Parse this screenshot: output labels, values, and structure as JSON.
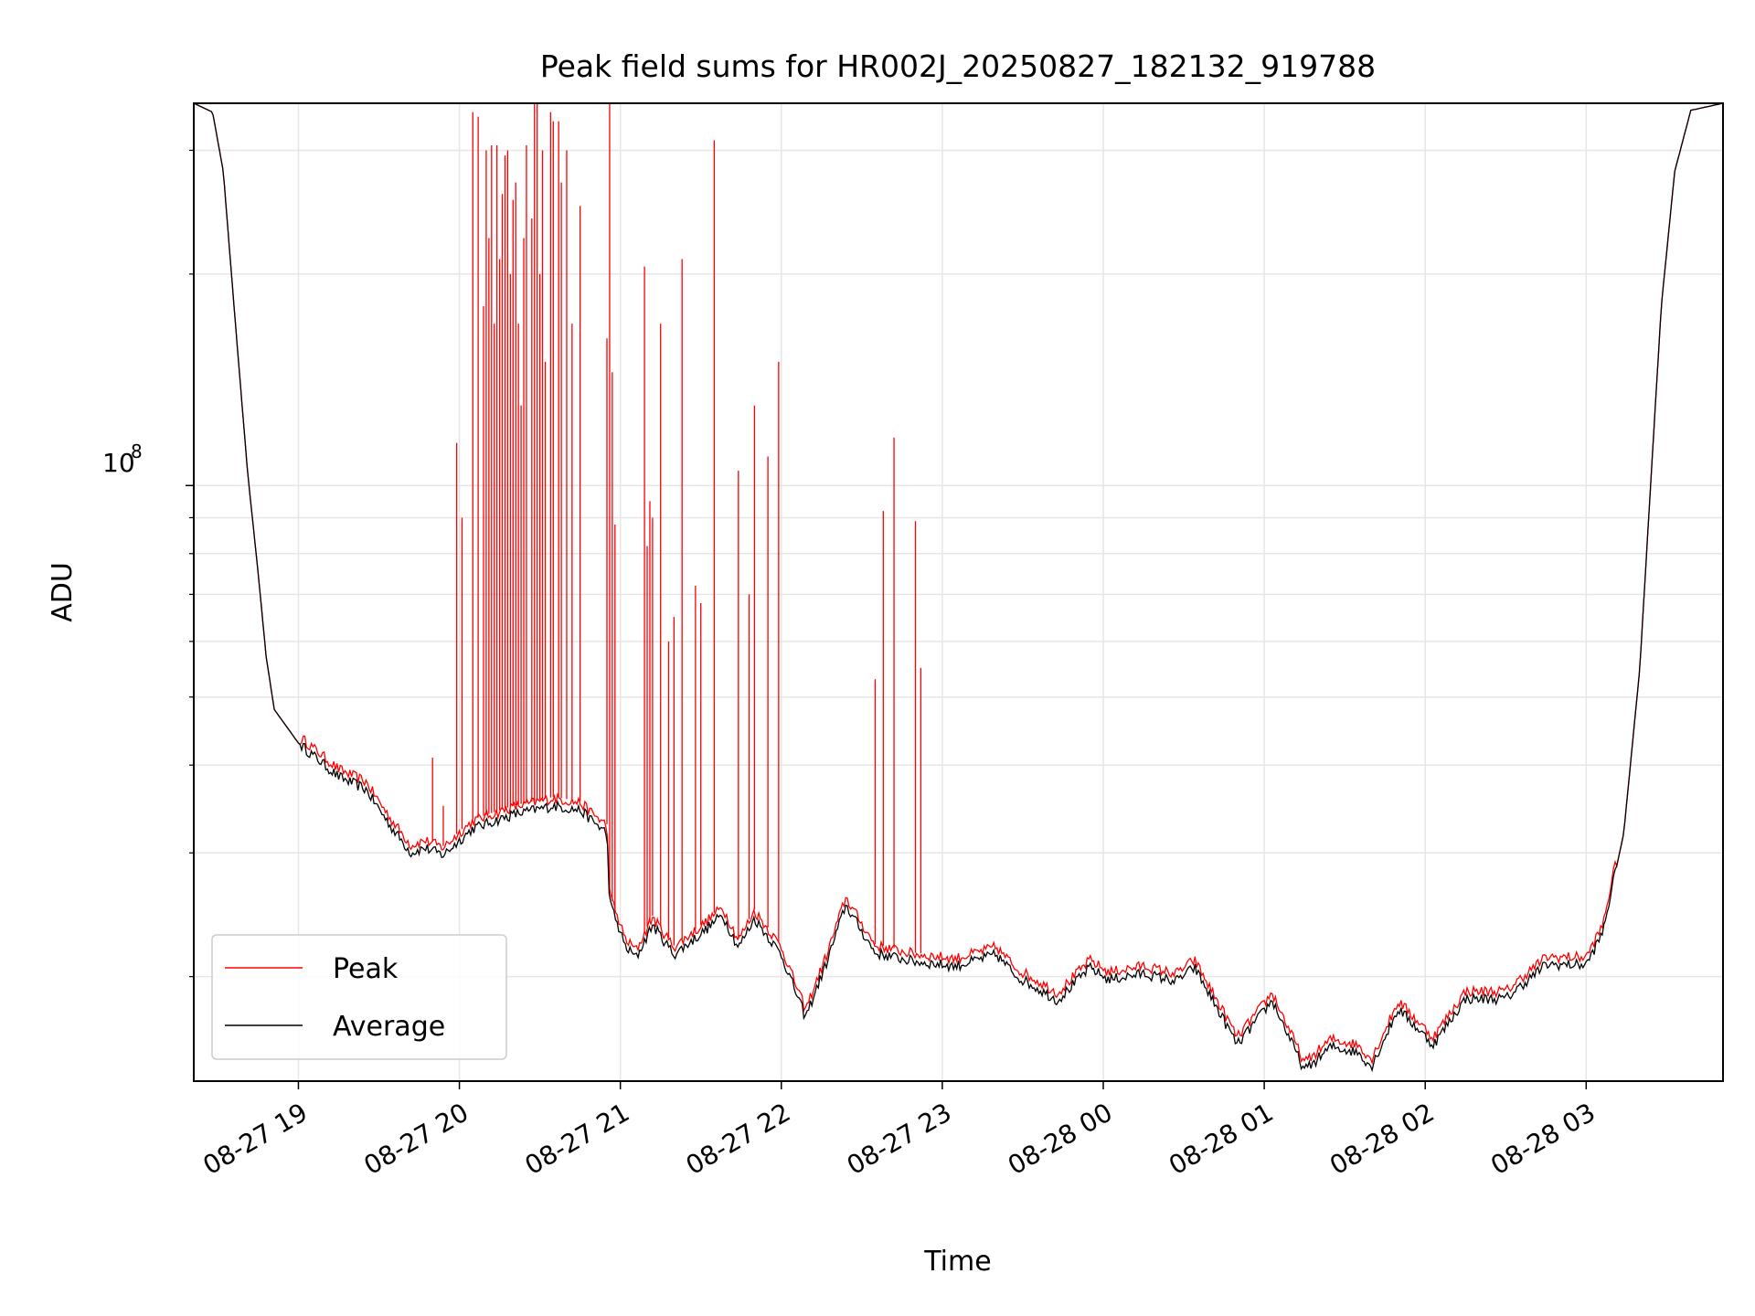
{
  "chart_data": {
    "type": "line",
    "title": "Peak field sums for HR002J_20250827_182132_919788",
    "xlabel": "Time",
    "ylabel": "ADU",
    "y_scale": "log",
    "ytick_label": {
      "base": "10",
      "exp": "8",
      "value": 100000000
    },
    "grid": true,
    "legend_position": "lower-left",
    "x_range": [
      "2025-08-27 18:21",
      "2025-08-28 03:51"
    ],
    "y_range": [
      14200000,
      350000000
    ],
    "xticks": [
      {
        "time": "2025-08-27 19:00",
        "label": "08-27 19"
      },
      {
        "time": "2025-08-27 20:00",
        "label": "08-27 20"
      },
      {
        "time": "2025-08-27 21:00",
        "label": "08-27 21"
      },
      {
        "time": "2025-08-27 22:00",
        "label": "08-27 22"
      },
      {
        "time": "2025-08-27 23:00",
        "label": "08-27 23"
      },
      {
        "time": "2025-08-28 00:00",
        "label": "08-28 00"
      },
      {
        "time": "2025-08-28 01:00",
        "label": "08-28 01"
      },
      {
        "time": "2025-08-28 02:00",
        "label": "08-28 02"
      },
      {
        "time": "2025-08-28 03:00",
        "label": "08-28 03"
      }
    ],
    "series": [
      {
        "name": "Average",
        "color": "#000000",
        "points": [
          [
            "2025-08-27 18:21",
            350000000
          ],
          [
            "2025-08-27 18:28",
            340000000
          ],
          [
            "2025-08-27 18:32",
            280000000
          ],
          [
            "2025-08-27 18:36",
            180000000
          ],
          [
            "2025-08-27 18:41",
            105000000
          ],
          [
            "2025-08-27 18:45",
            75000000
          ],
          [
            "2025-08-27 18:48",
            57000000
          ],
          [
            "2025-08-27 18:51",
            48000000
          ],
          [
            "2025-08-27 19:00",
            43000000
          ],
          [
            "2025-08-27 19:15",
            38500000
          ],
          [
            "2025-08-27 19:25",
            37000000
          ],
          [
            "2025-08-27 19:35",
            32500000
          ],
          [
            "2025-08-27 19:42",
            30000000
          ],
          [
            "2025-08-27 19:47",
            30500000
          ],
          [
            "2025-08-27 19:54",
            29800000
          ],
          [
            "2025-08-27 20:05",
            32500000
          ],
          [
            "2025-08-27 20:20",
            34000000
          ],
          [
            "2025-08-27 20:35",
            35000000
          ],
          [
            "2025-08-27 20:45",
            34500000
          ],
          [
            "2025-08-27 20:55",
            32000000
          ],
          [
            "2025-08-27 20:56",
            25500000
          ],
          [
            "2025-08-27 21:02",
            22000000
          ],
          [
            "2025-08-27 21:06",
            21300000
          ],
          [
            "2025-08-27 21:12",
            23700000
          ],
          [
            "2025-08-27 21:20",
            21500000
          ],
          [
            "2025-08-27 21:30",
            23000000
          ],
          [
            "2025-08-27 21:38",
            24500000
          ],
          [
            "2025-08-27 21:44",
            22000000
          ],
          [
            "2025-08-27 21:50",
            24200000
          ],
          [
            "2025-08-27 22:00",
            21500000
          ],
          [
            "2025-08-27 22:09",
            17500000
          ],
          [
            "2025-08-27 22:17",
            21000000
          ],
          [
            "2025-08-27 22:24",
            25300000
          ],
          [
            "2025-08-27 22:35",
            21600000
          ],
          [
            "2025-08-27 22:50",
            21000000
          ],
          [
            "2025-08-27 23:05",
            20700000
          ],
          [
            "2025-08-27 23:20",
            21500000
          ],
          [
            "2025-08-27 23:28",
            20000000
          ],
          [
            "2025-08-27 23:43",
            18500000
          ],
          [
            "2025-08-27 23:55",
            20600000
          ],
          [
            "2025-08-28 00:02",
            19800000
          ],
          [
            "2025-08-28 00:15",
            20200000
          ],
          [
            "2025-08-28 00:27",
            19700000
          ],
          [
            "2025-08-28 00:34",
            20600000
          ],
          [
            "2025-08-28 00:50",
            16000000
          ],
          [
            "2025-08-28 01:03",
            18500000
          ],
          [
            "2025-08-28 01:15",
            14700000
          ],
          [
            "2025-08-28 01:25",
            15900000
          ],
          [
            "2025-08-28 01:35",
            15600000
          ],
          [
            "2025-08-28 01:40",
            14900000
          ],
          [
            "2025-08-28 01:50",
            18000000
          ],
          [
            "2025-08-28 02:03",
            16000000
          ],
          [
            "2025-08-28 02:15",
            18600000
          ],
          [
            "2025-08-28 02:30",
            18600000
          ],
          [
            "2025-08-28 02:45",
            20800000
          ],
          [
            "2025-08-28 03:00",
            20800000
          ],
          [
            "2025-08-28 03:06",
            23000000
          ],
          [
            "2025-08-28 03:14",
            32000000
          ],
          [
            "2025-08-28 03:20",
            55000000
          ],
          [
            "2025-08-28 03:24",
            100000000
          ],
          [
            "2025-08-28 03:28",
            180000000
          ],
          [
            "2025-08-28 03:33",
            280000000
          ],
          [
            "2025-08-28 03:39",
            342000000
          ],
          [
            "2025-08-28 03:51",
            350000000
          ]
        ]
      },
      {
        "name": "Peak",
        "color": "#ff0000",
        "spikes": [
          [
            "2025-08-27 19:50",
            41000000
          ],
          [
            "2025-08-27 19:54",
            35000000
          ],
          [
            "2025-08-27 19:59",
            115000000
          ],
          [
            "2025-08-27 20:01",
            90000000
          ],
          [
            "2025-08-27 20:05",
            340000000
          ],
          [
            "2025-08-27 20:07",
            335000000
          ],
          [
            "2025-08-27 20:09",
            180000000
          ],
          [
            "2025-08-27 20:10",
            300000000
          ],
          [
            "2025-08-27 20:11",
            225000000
          ],
          [
            "2025-08-27 20:12",
            305000000
          ],
          [
            "2025-08-27 20:13",
            170000000
          ],
          [
            "2025-08-27 20:14",
            305000000
          ],
          [
            "2025-08-27 20:15",
            210000000
          ],
          [
            "2025-08-27 20:16",
            260000000
          ],
          [
            "2025-08-27 20:17",
            295000000
          ],
          [
            "2025-08-27 20:18",
            300000000
          ],
          [
            "2025-08-27 20:19",
            200000000
          ],
          [
            "2025-08-27 20:20",
            255000000
          ],
          [
            "2025-08-27 20:21",
            270000000
          ],
          [
            "2025-08-27 20:22",
            170000000
          ],
          [
            "2025-08-27 20:23",
            130000000
          ],
          [
            "2025-08-27 20:24",
            225000000
          ],
          [
            "2025-08-27 20:25",
            305000000
          ],
          [
            "2025-08-27 20:27",
            240000000
          ],
          [
            "2025-08-27 20:28",
            350000000
          ],
          [
            "2025-08-27 20:29",
            350000000
          ],
          [
            "2025-08-27 20:30",
            200000000
          ],
          [
            "2025-08-27 20:31",
            300000000
          ],
          [
            "2025-08-27 20:32",
            150000000
          ],
          [
            "2025-08-27 20:34",
            340000000
          ],
          [
            "2025-08-27 20:35",
            330000000
          ],
          [
            "2025-08-27 20:37",
            330000000
          ],
          [
            "2025-08-27 20:38",
            270000000
          ],
          [
            "2025-08-27 20:40",
            300000000
          ],
          [
            "2025-08-27 20:42",
            170000000
          ],
          [
            "2025-08-27 20:45",
            250000000
          ],
          [
            "2025-08-27 20:55",
            162000000
          ],
          [
            "2025-08-27 20:56",
            350000000
          ],
          [
            "2025-08-27 20:57",
            145000000
          ],
          [
            "2025-08-27 20:58",
            88000000
          ],
          [
            "2025-08-27 21:09",
            205000000
          ],
          [
            "2025-08-27 21:10",
            82000000
          ],
          [
            "2025-08-27 21:11",
            95000000
          ],
          [
            "2025-08-27 21:12",
            90000000
          ],
          [
            "2025-08-27 21:15",
            170000000
          ],
          [
            "2025-08-27 21:18",
            60000000
          ],
          [
            "2025-08-27 21:20",
            65000000
          ],
          [
            "2025-08-27 21:23",
            210000000
          ],
          [
            "2025-08-27 21:28",
            72000000
          ],
          [
            "2025-08-27 21:30",
            68000000
          ],
          [
            "2025-08-27 21:35",
            310000000
          ],
          [
            "2025-08-27 21:44",
            105000000
          ],
          [
            "2025-08-27 21:48",
            70000000
          ],
          [
            "2025-08-27 21:50",
            130000000
          ],
          [
            "2025-08-27 21:55",
            110000000
          ],
          [
            "2025-08-27 21:59",
            150000000
          ],
          [
            "2025-08-27 22:35",
            53000000
          ],
          [
            "2025-08-27 22:38",
            92000000
          ],
          [
            "2025-08-27 22:42",
            117000000
          ],
          [
            "2025-08-27 22:50",
            89000000
          ],
          [
            "2025-08-27 22:52",
            55000000
          ]
        ]
      }
    ]
  }
}
